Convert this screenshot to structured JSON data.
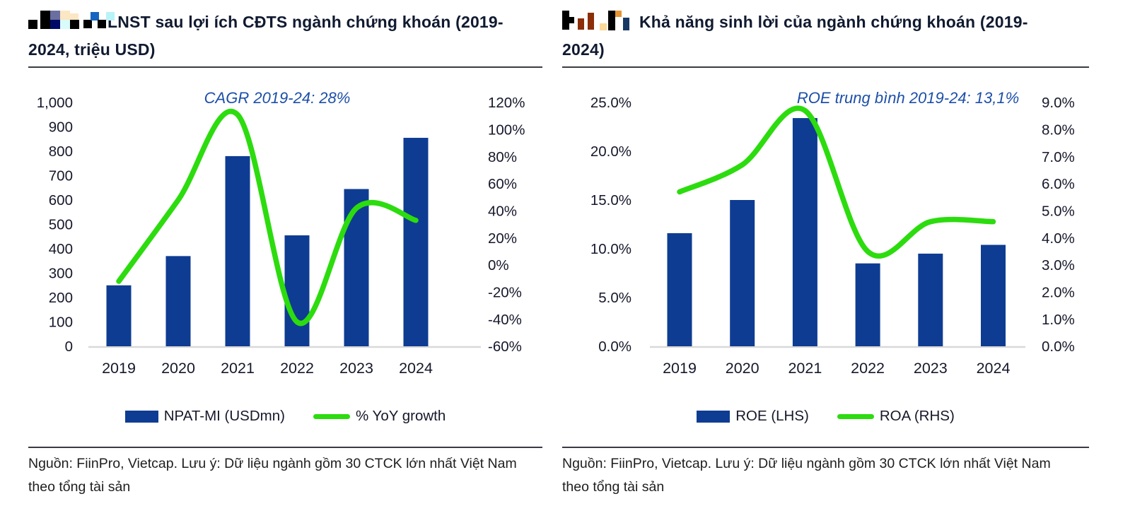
{
  "colors": {
    "bar_blue": "#0e3c92",
    "line_green": "#2cdc0e",
    "annotation_blue": "#1d4fa8",
    "title_navy": "#101a30",
    "axis_text": "#16182b",
    "baseline_gray": "#d9d9d9",
    "rule_dark": "#3a3b44"
  },
  "panels": [
    {
      "title": "LNST sau lợi ích CĐTS ngành chứng khoán (2019-2024, triệu USD)",
      "icon": "pixel-mosaic-chart-icon",
      "annotation": "CAGR 2019-24: 28%",
      "legend": [
        {
          "marker": "bar",
          "label": "NPAT-MI (USDmn)"
        },
        {
          "marker": "line",
          "label": "% YoY growth"
        }
      ],
      "source": "Nguồn: FiinPro, Vietcap. Lưu ý: Dữ liệu ngành gồm 30 CTCK lớn nhất Việt Nam theo tổng tài sản"
    },
    {
      "title": "Khả năng sinh lời của ngành chứng khoán (2019-2024)",
      "icon": "mini-bars-icon",
      "annotation": "ROE trung bình 2019-24: 13,1%",
      "legend": [
        {
          "marker": "bar",
          "label": "ROE (LHS)"
        },
        {
          "marker": "line",
          "label": "ROA (RHS)"
        }
      ],
      "source": "Nguồn: FiinPro, Vietcap. Lưu ý: Dữ liệu ngành gồm 30 CTCK lớn nhất Việt Nam theo tổng tài sản"
    }
  ],
  "chart_data": [
    {
      "type": "bar",
      "title": "LNST sau lợi ích CĐTS ngành chứng khoán (2019-2024, triệu USD)",
      "annotation": "CAGR 2019-24: 28%",
      "categories": [
        "2019",
        "2020",
        "2021",
        "2022",
        "2023",
        "2024"
      ],
      "series": [
        {
          "name": "NPAT-MI (USDmn)",
          "type": "bar",
          "axis": "left",
          "values": [
            250,
            370,
            780,
            455,
            645,
            855
          ]
        },
        {
          "name": "% YoY growth",
          "type": "line",
          "axis": "right",
          "values": [
            -12,
            48,
            111,
            -42,
            42,
            33
          ]
        }
      ],
      "left_axis": {
        "min": 0,
        "max": 1000,
        "tick_labels": [
          "1,000",
          "900",
          "800",
          "700",
          "600",
          "500",
          "400",
          "300",
          "200",
          "100",
          "0"
        ]
      },
      "right_axis": {
        "min": -60,
        "max": 120,
        "tick_labels": [
          "120%",
          "100%",
          "80%",
          "60%",
          "40%",
          "20%",
          "0%",
          "-20%",
          "-40%",
          "-60%"
        ]
      },
      "grid": false,
      "legend_position": "bottom"
    },
    {
      "type": "bar",
      "title": "Khả năng sinh lời của ngành chứng khoán (2019-2024)",
      "annotation": "ROE trung bình 2019-24: 13,1%",
      "categories": [
        "2019",
        "2020",
        "2021",
        "2022",
        "2023",
        "2024"
      ],
      "series": [
        {
          "name": "ROE (LHS)",
          "type": "bar",
          "axis": "left",
          "values": [
            11.6,
            15.0,
            23.4,
            8.5,
            9.5,
            10.4
          ]
        },
        {
          "name": "ROA (RHS)",
          "type": "line",
          "axis": "right",
          "values": [
            5.7,
            6.7,
            8.7,
            3.5,
            4.6,
            4.6
          ]
        }
      ],
      "left_axis": {
        "min": 0,
        "max": 25,
        "tick_labels": [
          "25.0%",
          "20.0%",
          "15.0%",
          "10.0%",
          "5.0%",
          "0.0%"
        ]
      },
      "right_axis": {
        "min": 0,
        "max": 9,
        "tick_labels": [
          "9.0%",
          "8.0%",
          "7.0%",
          "6.0%",
          "5.0%",
          "4.0%",
          "3.0%",
          "2.0%",
          "1.0%",
          "0.0%"
        ]
      },
      "grid": false,
      "legend_position": "bottom"
    }
  ]
}
